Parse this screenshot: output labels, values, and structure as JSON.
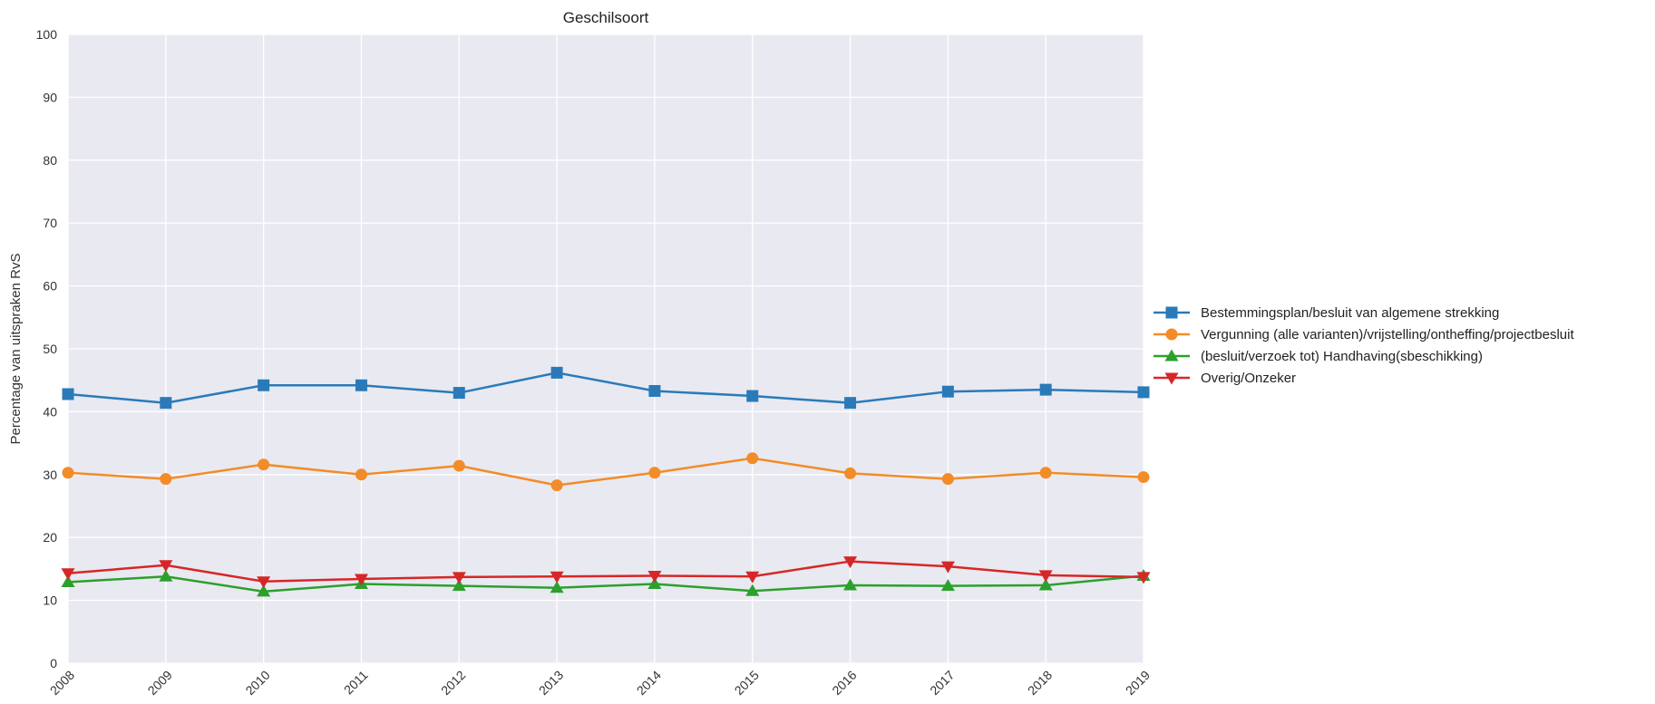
{
  "chart_data": {
    "type": "line",
    "title": "Geschilsoort",
    "xlabel": "",
    "ylabel": "Percentage van uitspraken RvS",
    "x": [
      "2008",
      "2009",
      "2010",
      "2011",
      "2012",
      "2013",
      "2014",
      "2015",
      "2016",
      "2017",
      "2018",
      "2019"
    ],
    "ylim": [
      0,
      100
    ],
    "yticks": [
      0,
      10,
      20,
      30,
      40,
      50,
      60,
      70,
      80,
      90,
      100
    ],
    "grid": true,
    "legend_position": "right",
    "series": [
      {
        "name": "Bestemmingsplan/besluit van algemene strekking",
        "color": "#2a7ab9",
        "marker": "square",
        "values": [
          42.8,
          41.4,
          44.2,
          44.2,
          43.0,
          46.2,
          43.3,
          42.5,
          41.4,
          43.2,
          43.5,
          43.1
        ]
      },
      {
        "name": "Vergunning (alle varianten)/vrijstelling/ontheffing/projectbesluit",
        "color": "#f28c28",
        "marker": "circle",
        "values": [
          30.3,
          29.3,
          31.6,
          30.0,
          31.4,
          28.3,
          30.3,
          32.6,
          30.2,
          29.3,
          30.3,
          29.6
        ]
      },
      {
        "name": "(besluit/verzoek tot) Handhaving(sbeschikking)",
        "color": "#2ca02c",
        "marker": "triangle-up",
        "values": [
          12.9,
          13.8,
          11.4,
          12.6,
          12.3,
          12.0,
          12.6,
          11.5,
          12.4,
          12.3,
          12.4,
          13.9
        ]
      },
      {
        "name": "Overig/Onzeker",
        "color": "#d62728",
        "marker": "triangle-down",
        "values": [
          14.3,
          15.6,
          13.0,
          13.4,
          13.7,
          13.8,
          13.9,
          13.8,
          16.2,
          15.4,
          14.0,
          13.7
        ]
      }
    ]
  }
}
